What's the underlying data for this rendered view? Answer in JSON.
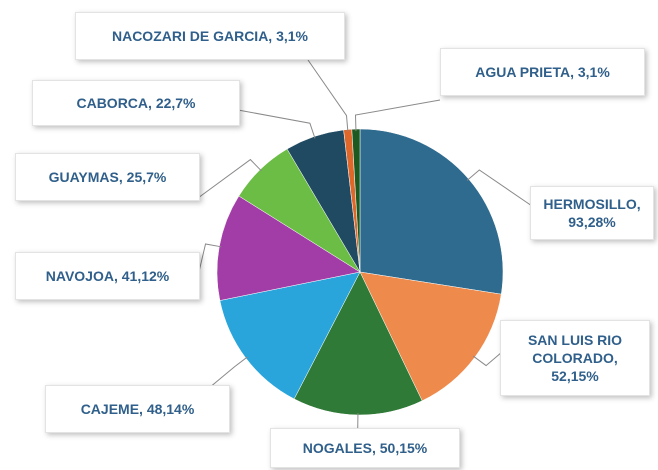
{
  "chart_data": {
    "type": "pie",
    "categories": [
      "HERMOSILLO,",
      "SAN LUIS RIO COLORADO,",
      "NOGALES,",
      "CAJEME,",
      "NAVOJOA,",
      "GUAYMAS,",
      "CABORCA,",
      "NACOZARI DE GARCIA,",
      "AGUA PRIETA,"
    ],
    "values": [
      93.28,
      52.15,
      50.15,
      48.14,
      41.12,
      25.7,
      22.7,
      3.1,
      3.1
    ],
    "value_labels": [
      "93,28%",
      "52,15%",
      "50,15%",
      "48,14%",
      "41,12%",
      "25,7%",
      "22,7%",
      "3,1%",
      "3,1%"
    ],
    "colors": [
      "#2e6b8e",
      "#ee8a4c",
      "#2f7a36",
      "#2aa5dc",
      "#a23ca6",
      "#6cbd46",
      "#1f4a62",
      "#e0672a",
      "#1d5a22"
    ]
  }
}
